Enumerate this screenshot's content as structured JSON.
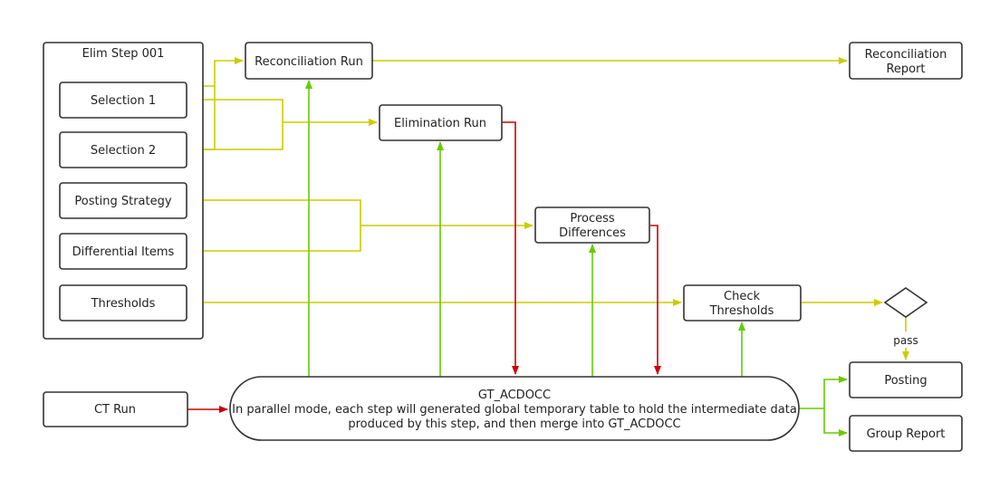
{
  "group": {
    "title": "Elim Step 001"
  },
  "nodes": {
    "selection1": "Selection 1",
    "selection2": "Selection 2",
    "posting_strategy": "Posting Strategy",
    "differential_items": "Differential Items",
    "thresholds": "Thresholds",
    "reconciliation_run": "Reconciliation Run",
    "reconciliation_report": [
      "Reconciliation",
      "Report"
    ],
    "elimination_run": "Elimination Run",
    "process_differences": [
      "Process",
      "Differences"
    ],
    "check_thresholds": [
      "Check",
      "Thresholds"
    ],
    "ct_run": "CT Run",
    "gt_acdocc": [
      "GT_ACDOCC",
      "In parallel mode, each step will generated global temporary table to hold the intermediate data",
      "produced by this step, and then merge into GT_ACDOCC"
    ],
    "posting": "Posting",
    "group_report": "Group Report"
  },
  "edge_labels": {
    "pass": "pass"
  },
  "colors": {
    "input": "#cccc00",
    "output": "#66cc00",
    "flow": "#cc0000"
  }
}
